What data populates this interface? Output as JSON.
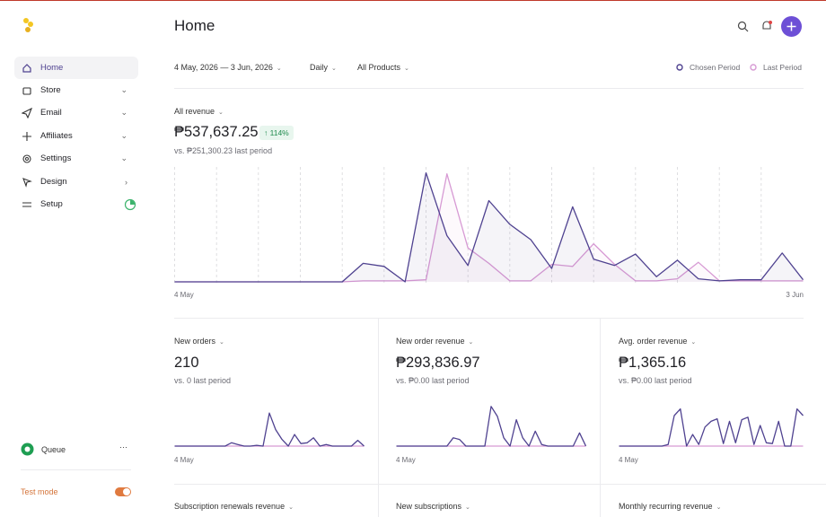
{
  "sidebar": {
    "nav": [
      "Home",
      "Store",
      "Email",
      "Affiliates",
      "Settings",
      "Design",
      "Setup"
    ],
    "queue": "Queue",
    "test_mode": "Test mode"
  },
  "header": {
    "title": "Home"
  },
  "filters": {
    "date_range": "4 May, 2026 — 3 Jun, 2026",
    "interval": "Daily",
    "products": "All Products"
  },
  "revenue": {
    "label": "All revenue",
    "value": "₱537,637.25",
    "change": "114%",
    "comparison": "vs. ₱251,300.23 last period",
    "chart": {
      "type": "line",
      "x_start": "4 May",
      "x_end": "3 Jun",
      "ylim": [
        0,
        110
      ],
      "series": [
        {
          "name": "Chosen Period",
          "color": "#4f4290",
          "values": [
            0,
            0,
            0,
            0,
            0,
            0,
            0,
            0,
            0,
            18,
            15,
            0,
            106,
            45,
            16,
            79,
            56,
            41,
            13,
            73,
            22,
            16,
            27,
            5,
            21,
            3,
            1,
            2,
            2,
            28,
            2
          ]
        },
        {
          "name": "Last Period",
          "color": "#d79ad4",
          "values": [
            0,
            0,
            0,
            0,
            0,
            0,
            0,
            0,
            0,
            1,
            1,
            1,
            2,
            105,
            33,
            18,
            1,
            1,
            17,
            15,
            37,
            17,
            1,
            1,
            3,
            19,
            1,
            1,
            1,
            1,
            1
          ]
        }
      ]
    }
  },
  "metrics": [
    {
      "label": "New orders",
      "value": "210",
      "comparison": "vs. 0 last period",
      "chart": {
        "type": "line",
        "x_start": "4 May",
        "ylim": [
          0,
          50
        ],
        "series": [
          {
            "name": "Chosen Period",
            "color": "#4f4290",
            "values": [
              0,
              0,
              0,
              0,
              0,
              0,
              0,
              0,
              0,
              4,
              2,
              0,
              0,
              1,
              0,
              40,
              20,
              8,
              0,
              14,
              3,
              4,
              10,
              0,
              2,
              0,
              0,
              0,
              0,
              7,
              0
            ]
          },
          {
            "name": "Last Period",
            "color": "#d79ad4",
            "values": [
              0,
              0,
              0,
              0,
              0,
              0,
              0,
              0,
              0,
              0,
              0,
              0,
              0,
              0,
              0,
              0,
              0,
              0,
              0,
              0,
              0,
              0,
              0,
              0,
              0,
              0,
              0,
              0,
              0,
              0,
              0
            ]
          }
        ]
      }
    },
    {
      "label": "New order revenue",
      "value": "₱293,836.97",
      "comparison": "vs. ₱0.00 last period",
      "chart": {
        "type": "line",
        "x_start": "4 May",
        "ylim": [
          0,
          50
        ],
        "series": [
          {
            "name": "Chosen Period",
            "color": "#4f4290",
            "values": [
              0,
              0,
              0,
              0,
              0,
              0,
              0,
              0,
              0,
              10,
              8,
              0,
              0,
              0,
              0,
              48,
              36,
              10,
              0,
              32,
              10,
              0,
              18,
              2,
              0,
              0,
              0,
              0,
              0,
              16,
              0
            ]
          },
          {
            "name": "Last Period",
            "color": "#d79ad4",
            "values": [
              0,
              0,
              0,
              0,
              0,
              0,
              0,
              0,
              0,
              0,
              0,
              0,
              0,
              0,
              0,
              0,
              0,
              0,
              0,
              0,
              0,
              0,
              0,
              0,
              0,
              0,
              0,
              0,
              0,
              0,
              0
            ]
          }
        ]
      }
    },
    {
      "label": "Avg. order revenue",
      "value": "₱1,365.16",
      "comparison": "vs. ₱0.00 last period",
      "chart": {
        "type": "line",
        "x_start": "4 May",
        "ylim": [
          0,
          50
        ],
        "series": [
          {
            "name": "Chosen Period",
            "color": "#4f4290",
            "values": [
              0,
              0,
              0,
              0,
              0,
              0,
              0,
              0,
              2,
              37,
              45,
              0,
              14,
              2,
              23,
              30,
              33,
              3,
              30,
              4,
              32,
              35,
              2,
              25,
              4,
              3,
              30,
              0,
              0,
              45,
              37
            ]
          },
          {
            "name": "Last Period",
            "color": "#d79ad4",
            "values": [
              0,
              0,
              0,
              0,
              0,
              0,
              0,
              0,
              0,
              0,
              0,
              0,
              0,
              0,
              0,
              0,
              0,
              0,
              0,
              0,
              0,
              0,
              0,
              0,
              0,
              0,
              0,
              0,
              0,
              0,
              0
            ]
          }
        ]
      }
    }
  ],
  "more_metrics": [
    "Subscription renewals revenue",
    "New subscriptions",
    "Monthly recurring revenue"
  ]
}
